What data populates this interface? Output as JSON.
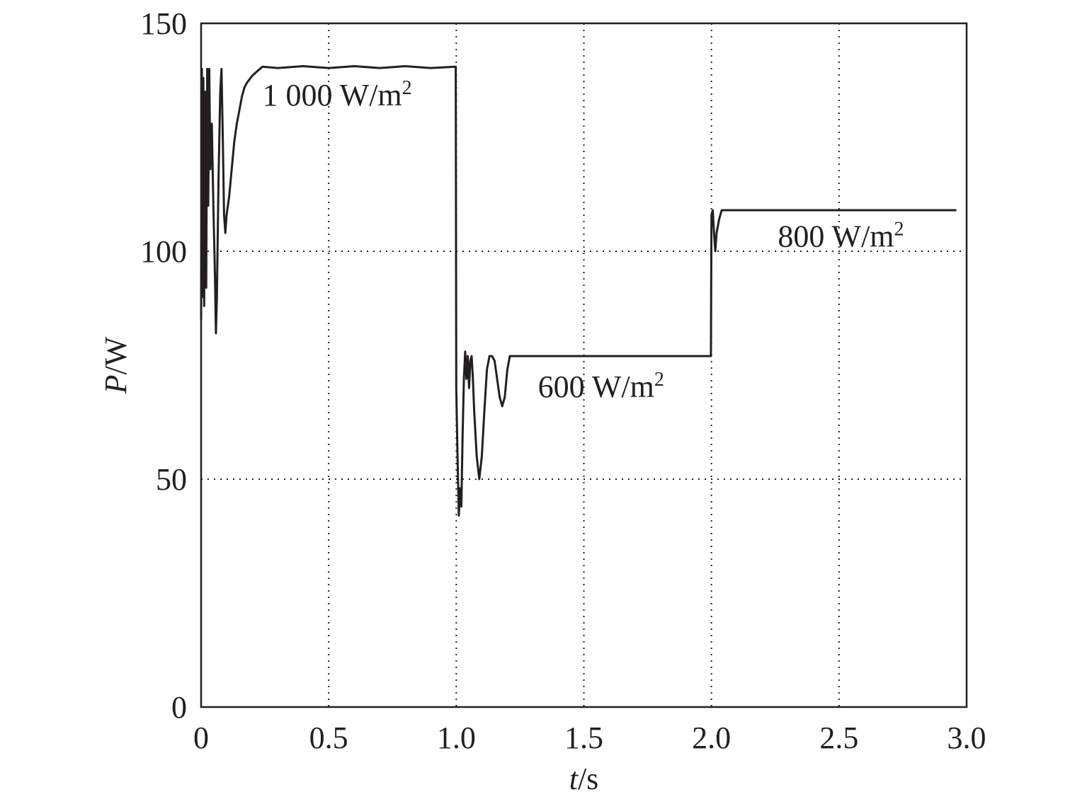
{
  "chart_data": {
    "type": "line",
    "xlabel": {
      "var": "t",
      "unit": "/s"
    },
    "ylabel": {
      "var": "P",
      "unit": "/W"
    },
    "xlim": [
      0,
      3.0
    ],
    "ylim": [
      0,
      150
    ],
    "xticks": [
      0,
      0.5,
      1.0,
      1.5,
      2.0,
      2.5,
      3.0
    ],
    "xtick_labels": [
      "0",
      "0.5",
      "1.0",
      "1.5",
      "2.0",
      "2.5",
      "3.0"
    ],
    "yticks": [
      0,
      50,
      100,
      150
    ],
    "ytick_labels": [
      "0",
      "50",
      "100",
      "150"
    ],
    "grid": true,
    "annotations": [
      {
        "base": "1 000 W/m",
        "sup": "2",
        "x": 0.24,
        "y": 132
      },
      {
        "base": "600 W/m",
        "sup": "2",
        "x": 1.32,
        "y": 68
      },
      {
        "base": "800 W/m",
        "sup": "2",
        "x": 2.26,
        "y": 101
      }
    ],
    "series": [
      {
        "values": [
          [
            0,
            85
          ],
          [
            0.003,
            140
          ],
          [
            0.006,
            90
          ],
          [
            0.009,
            138
          ],
          [
            0.012,
            88
          ],
          [
            0.016,
            135
          ],
          [
            0.02,
            92
          ],
          [
            0.024,
            140
          ],
          [
            0.028,
            110
          ],
          [
            0.032,
            140
          ],
          [
            0.036,
            118
          ],
          [
            0.042,
            128
          ],
          [
            0.048,
            110
          ],
          [
            0.054,
            95
          ],
          [
            0.058,
            82
          ],
          [
            0.062,
            90
          ],
          [
            0.068,
            115
          ],
          [
            0.075,
            135
          ],
          [
            0.08,
            140
          ],
          [
            0.085,
            125
          ],
          [
            0.09,
            108
          ],
          [
            0.095,
            104
          ],
          [
            0.1,
            108
          ],
          [
            0.11,
            112
          ],
          [
            0.12,
            118
          ],
          [
            0.13,
            124
          ],
          [
            0.14,
            128
          ],
          [
            0.15,
            131
          ],
          [
            0.16,
            134
          ],
          [
            0.17,
            136
          ],
          [
            0.18,
            137
          ],
          [
            0.2,
            138.5
          ],
          [
            0.22,
            139.5
          ],
          [
            0.24,
            140.5
          ],
          [
            0.3,
            140.2
          ],
          [
            0.4,
            140.6
          ],
          [
            0.5,
            140.2
          ],
          [
            0.6,
            140.6
          ],
          [
            0.7,
            140.2
          ],
          [
            0.8,
            140.6
          ],
          [
            0.9,
            140.2
          ],
          [
            0.998,
            140.5
          ],
          [
            1.0,
            70
          ],
          [
            1.005,
            55
          ],
          [
            1.01,
            42
          ],
          [
            1.015,
            48
          ],
          [
            1.02,
            44
          ],
          [
            1.025,
            60
          ],
          [
            1.03,
            72
          ],
          [
            1.035,
            78
          ],
          [
            1.04,
            72
          ],
          [
            1.045,
            77
          ],
          [
            1.05,
            70
          ],
          [
            1.055,
            76
          ],
          [
            1.06,
            77
          ],
          [
            1.065,
            72
          ],
          [
            1.07,
            65
          ],
          [
            1.08,
            55
          ],
          [
            1.09,
            50
          ],
          [
            1.1,
            55
          ],
          [
            1.11,
            65
          ],
          [
            1.12,
            74
          ],
          [
            1.13,
            77
          ],
          [
            1.14,
            77
          ],
          [
            1.15,
            76
          ],
          [
            1.16,
            72
          ],
          [
            1.17,
            68
          ],
          [
            1.18,
            66
          ],
          [
            1.19,
            68
          ],
          [
            1.2,
            74
          ],
          [
            1.21,
            77
          ],
          [
            1.3,
            77
          ],
          [
            1.5,
            77
          ],
          [
            1.7,
            77
          ],
          [
            1.9,
            77
          ],
          [
            1.998,
            77
          ],
          [
            2.0,
            108
          ],
          [
            2.005,
            109
          ],
          [
            2.01,
            104
          ],
          [
            2.015,
            100
          ],
          [
            2.02,
            104
          ],
          [
            2.03,
            107
          ],
          [
            2.04,
            109
          ],
          [
            2.1,
            109
          ],
          [
            2.3,
            109
          ],
          [
            2.5,
            109
          ],
          [
            2.7,
            109
          ],
          [
            2.9,
            109
          ],
          [
            2.96,
            109
          ]
        ]
      }
    ]
  }
}
